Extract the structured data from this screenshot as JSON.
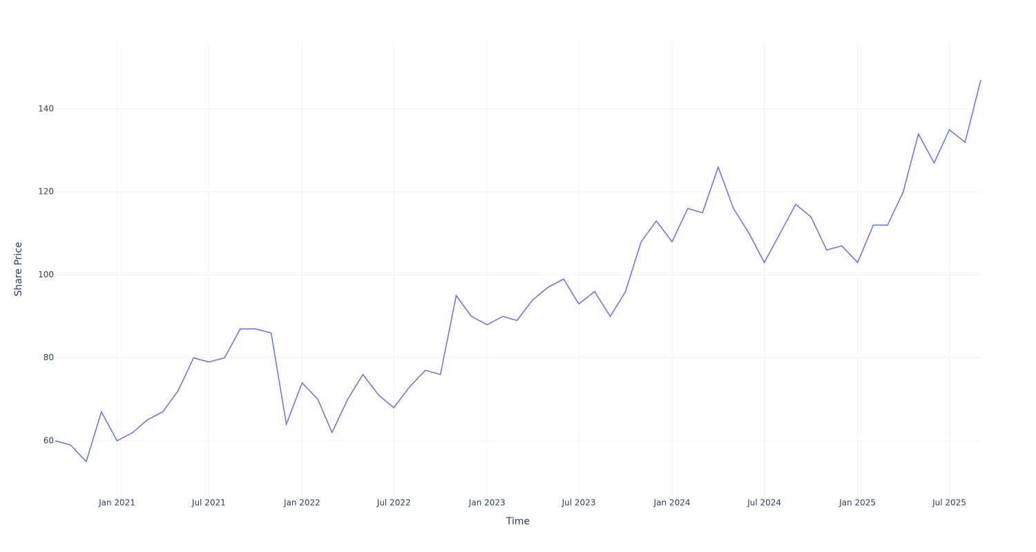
{
  "chart_data": {
    "type": "line",
    "x_label": "Time",
    "y_label": "Share Price",
    "x": [
      "2020-09",
      "2020-10",
      "2020-11",
      "2020-12",
      "2021-01",
      "2021-02",
      "2021-03",
      "2021-04",
      "2021-05",
      "2021-06",
      "2021-07",
      "2021-08",
      "2021-09",
      "2021-10",
      "2021-11",
      "2021-12",
      "2022-01",
      "2022-02",
      "2022-03",
      "2022-04",
      "2022-05",
      "2022-06",
      "2022-07",
      "2022-08",
      "2022-09",
      "2022-10",
      "2022-11",
      "2022-12",
      "2023-01",
      "2023-02",
      "2023-03",
      "2023-04",
      "2023-05",
      "2023-06",
      "2023-07",
      "2023-08",
      "2023-09",
      "2023-10",
      "2023-11",
      "2023-12",
      "2024-01",
      "2024-02",
      "2024-03",
      "2024-04",
      "2024-05",
      "2024-06",
      "2024-07",
      "2024-08",
      "2024-09",
      "2024-10",
      "2024-11",
      "2024-12",
      "2025-01",
      "2025-02",
      "2025-03",
      "2025-04",
      "2025-05",
      "2025-06",
      "2025-07",
      "2025-08",
      "2025-09"
    ],
    "series": [
      {
        "name": "Share Price",
        "color": "#636efa",
        "values": [
          60,
          59,
          55,
          67,
          60,
          62,
          65,
          67,
          72,
          80,
          79,
          80,
          87,
          87,
          86,
          64,
          74,
          70,
          62,
          70,
          76,
          71,
          68,
          73,
          77,
          76,
          95,
          90,
          88,
          90,
          89,
          94,
          97,
          99,
          93,
          96,
          90,
          96,
          108,
          113,
          108,
          116,
          115,
          126,
          116,
          110,
          103,
          110,
          117,
          114,
          106,
          107,
          103,
          112,
          112,
          120,
          134,
          127,
          135,
          132,
          147
        ]
      }
    ],
    "xlim": [
      "2020-09",
      "2025-09"
    ],
    "xticks": [
      {
        "value": "2021-01",
        "label": "Jan 2021"
      },
      {
        "value": "2021-07",
        "label": "Jul 2021"
      },
      {
        "value": "2022-01",
        "label": "Jan 2022"
      },
      {
        "value": "2022-07",
        "label": "Jul 2022"
      },
      {
        "value": "2023-01",
        "label": "Jan 2023"
      },
      {
        "value": "2023-07",
        "label": "Jul 2023"
      },
      {
        "value": "2024-01",
        "label": "Jan 2024"
      },
      {
        "value": "2024-07",
        "label": "Jul 2024"
      },
      {
        "value": "2025-01",
        "label": "Jan 2025"
      },
      {
        "value": "2025-07",
        "label": "Jul 2025"
      }
    ],
    "ylim": [
      46.5,
      156.3
    ],
    "yticks": [
      60,
      80,
      100,
      120,
      140
    ],
    "grid": true
  }
}
